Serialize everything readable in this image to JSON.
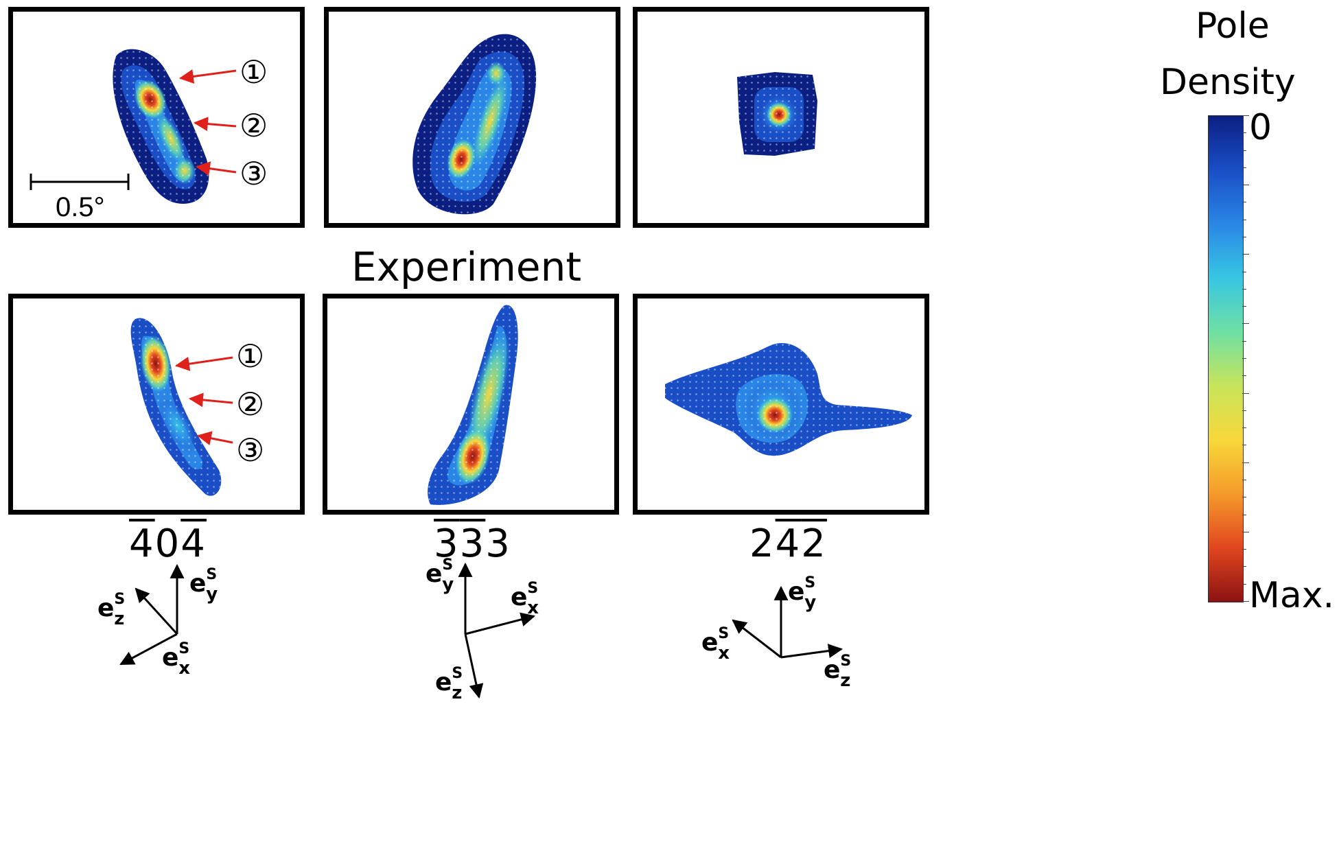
{
  "caption": "Experiment",
  "scale_bar_label": "0.5°",
  "markers": [
    "①",
    "②",
    "③"
  ],
  "colorbar": {
    "title_line1": "Pole",
    "title_line2": "Density",
    "min_label": "0",
    "max_label": "Max.",
    "colors": [
      "#0b1f82",
      "#1a4ec6",
      "#2a86e6",
      "#37c6e3",
      "#6ee0a4",
      "#c8e45a",
      "#f7d83a",
      "#f59a2a",
      "#e1461f",
      "#8b1212"
    ]
  },
  "columns": [
    {
      "hkl": [
        {
          "d": "4",
          "bar": true
        },
        {
          "d": "0",
          "bar": false
        },
        {
          "d": "4",
          "bar": true
        }
      ],
      "axes": {
        "x": "e",
        "sup": "S",
        "labels": [
          "y",
          "z",
          "x"
        ]
      }
    },
    {
      "hkl": [
        {
          "d": "3",
          "bar": true
        },
        {
          "d": "3",
          "bar": true
        },
        {
          "d": "3",
          "bar": false
        }
      ],
      "axes": {
        "x": "e",
        "sup": "S",
        "labels": [
          "y",
          "x",
          "z"
        ]
      }
    },
    {
      "hkl": [
        {
          "d": "2",
          "bar": false
        },
        {
          "d": "4",
          "bar": true
        },
        {
          "d": "2",
          "bar": true
        }
      ],
      "axes": {
        "x": "e",
        "sup": "S",
        "labels": [
          "y",
          "x",
          "z"
        ]
      }
    }
  ]
}
